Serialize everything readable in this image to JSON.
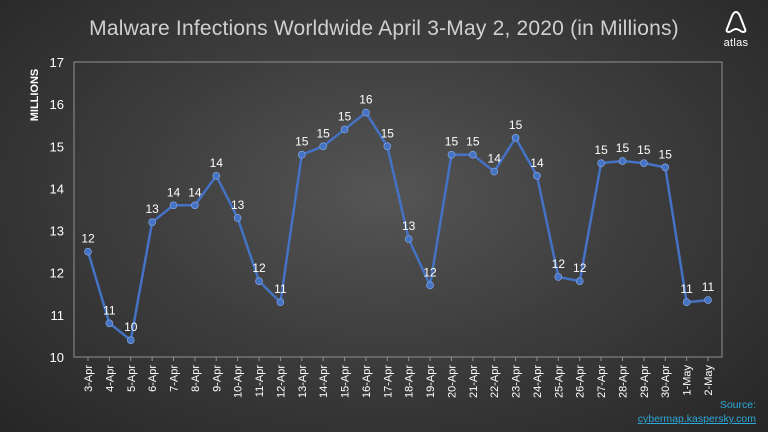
{
  "chart_data": {
    "type": "line",
    "title": "Malware Infections Worldwide April 3-May 2, 2020 (in Millions)",
    "ylabel": "MILLIONS",
    "xlabel": "",
    "ylim": [
      10,
      17
    ],
    "yticks": [
      10,
      11,
      12,
      13,
      14,
      15,
      16,
      17
    ],
    "grid": false,
    "categories": [
      "3-Apr",
      "4-Apr",
      "5-Apr",
      "6-Apr",
      "7-Apr",
      "8-Apr",
      "9-Apr",
      "10-Apr",
      "11-Apr",
      "12-Apr",
      "13-Apr",
      "14-Apr",
      "15-Apr",
      "16-Apr",
      "17-Apr",
      "18-Apr",
      "19-Apr",
      "20-Apr",
      "21-Apr",
      "22-Apr",
      "23-Apr",
      "24-Apr",
      "25-Apr",
      "26-Apr",
      "27-Apr",
      "28-Apr",
      "29-Apr",
      "30-Apr",
      "1-May",
      "2-May"
    ],
    "values": [
      12.5,
      10.8,
      10.4,
      13.2,
      13.6,
      13.6,
      14.3,
      13.3,
      11.8,
      11.3,
      14.8,
      15.0,
      15.4,
      15.8,
      15.0,
      12.8,
      11.7,
      14.8,
      14.8,
      14.4,
      15.2,
      14.3,
      11.9,
      11.8,
      14.6,
      14.65,
      14.6,
      14.5,
      11.3,
      11.35
    ],
    "data_labels": [
      "12",
      "11",
      "10",
      "13",
      "14",
      "14",
      "14",
      "13",
      "12",
      "11",
      "15",
      "15",
      "15",
      "16",
      "15",
      "13",
      "12",
      "15",
      "15",
      "14",
      "15",
      "14",
      "12",
      "12",
      "15",
      "15",
      "15",
      "15",
      "11",
      "11"
    ],
    "line_color": "#4472c4"
  },
  "logo": {
    "text": "atlas",
    "icon": "atlas-a-logo-icon"
  },
  "source": {
    "label": "Source:",
    "link": "cybermap.kaspersky.com"
  }
}
